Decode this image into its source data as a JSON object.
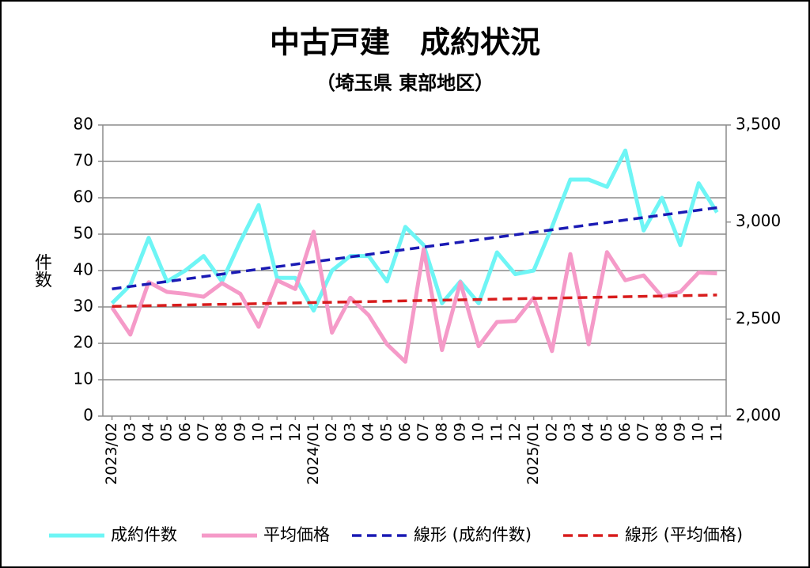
{
  "chart_data": {
    "type": "line",
    "title": "中古戸建　成約状況",
    "subtitle": "（埼玉県 東部地区）",
    "y_label": "件数",
    "categories": [
      "2023/02",
      "03",
      "04",
      "05",
      "06",
      "07",
      "08",
      "09",
      "10",
      "11",
      "12",
      "2024/01",
      "02",
      "03",
      "04",
      "05",
      "06",
      "07",
      "08",
      "09",
      "10",
      "11",
      "12",
      "2025/01",
      "02",
      "03",
      "04",
      "05",
      "06",
      "07",
      "08",
      "09",
      "10",
      "11"
    ],
    "ylim": [
      0,
      80
    ],
    "yticks": [
      0,
      10,
      20,
      30,
      40,
      50,
      60,
      70,
      80
    ],
    "y2lim": [
      2000,
      3500
    ],
    "y2ticks": [
      {
        "value": 2000,
        "label": "2,000"
      },
      {
        "value": 2500,
        "label": "2,500"
      },
      {
        "value": 3000,
        "label": "3,000"
      },
      {
        "value": 3500,
        "label": "3,500"
      }
    ],
    "grid": true,
    "legend": "bottom",
    "series": [
      {
        "name": "成約件数",
        "color": "#6ef5f5",
        "values": [
          31,
          36,
          49,
          37,
          40,
          44,
          37,
          48,
          58,
          38,
          38,
          29,
          40,
          44,
          44,
          37,
          52,
          47,
          31,
          37,
          31,
          45,
          39,
          40,
          52,
          65,
          65,
          63,
          73,
          51,
          60,
          47,
          64,
          56
        ],
        "trendline": {
          "name": "線形 (成約件数)",
          "color": "#1a1ab4"
        }
      },
      {
        "name": "平均価格",
        "color": "#f59ac8",
        "axis": "y2",
        "values": [
          2560,
          2420,
          2690,
          2640,
          2630,
          2615,
          2685,
          2630,
          2460,
          2700,
          2655,
          2950,
          2430,
          2610,
          2520,
          2370,
          2280,
          2860,
          2340,
          2690,
          2360,
          2485,
          2490,
          2610,
          2335,
          2835,
          2370,
          2845,
          2700,
          2725,
          2615,
          2640,
          2740,
          2735
        ],
        "trendline": {
          "name": "線形 (平均価格)",
          "color": "#d81c1c"
        }
      }
    ]
  }
}
